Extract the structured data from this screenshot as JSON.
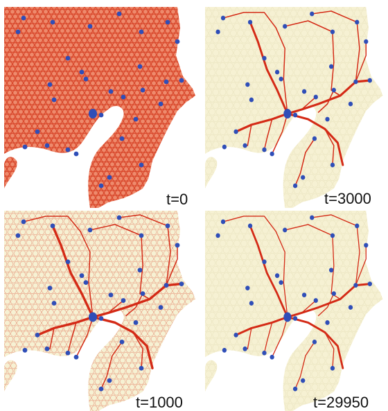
{
  "figure": {
    "panels": [
      {
        "id": "top-left",
        "time_label": "t=0",
        "stage": "initial-mesh"
      },
      {
        "id": "top-right",
        "time_label": "t=3000",
        "stage": "network-forming"
      },
      {
        "id": "bottom-left",
        "time_label": "t=1000",
        "stage": "dense-mesh-with-trunks"
      },
      {
        "id": "bottom-right",
        "time_label": "t=29950",
        "stage": "final-network"
      }
    ]
  },
  "colors": {
    "background": "#ffffff",
    "land": "#f6f1d3",
    "mesh": "#d94a2e",
    "mesh_dense_fill": "#ee8a6c",
    "network": "#d42a16",
    "food_source": "#2f4eb8",
    "sea": "#ffffff"
  },
  "icons": {
    "food_source_marker": "blue-dot",
    "central_source_marker": "blue-blob"
  }
}
